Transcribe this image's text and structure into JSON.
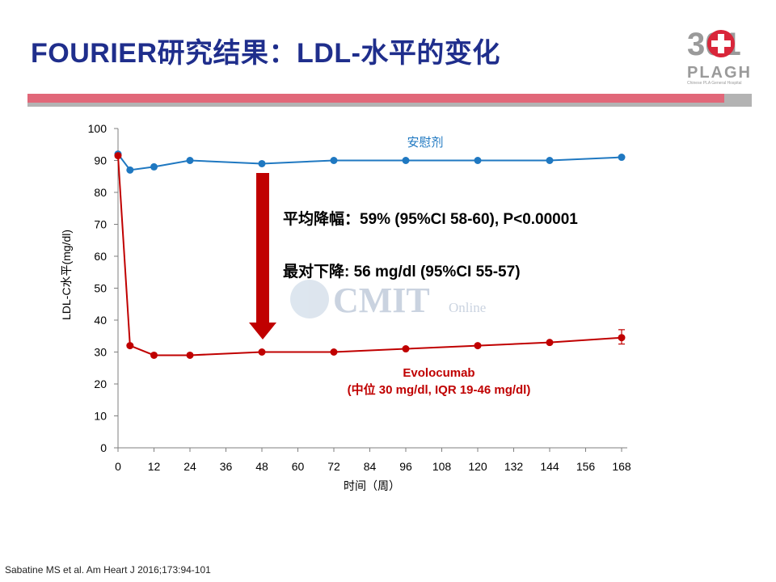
{
  "slide": {
    "title": "FOURIER研究结果：LDL-水平的变化",
    "reference": "Sabatine MS et al. Am Heart  J 2016;173:94-101"
  },
  "logo": {
    "name": "PLAGH",
    "numeral": "301",
    "subtitle": "Chinese PLA General Hospital"
  },
  "watermark": {
    "text": "CMIT",
    "sub": "Online"
  },
  "colors": {
    "title": "#1F2E8C",
    "placebo": "#1F78C1",
    "evolocumab": "#C00000",
    "arrow": "#C00000",
    "accent_bar": "#E16779",
    "grey_bar": "#B3B3B3"
  },
  "annotations": {
    "line1": "平均降幅：59%  (95%CI  58-60), P<0.00001",
    "line2": "最对下降: 56 mg/dl (95%CI  55-57)"
  },
  "chart_data": {
    "type": "line",
    "xlabel": "时间（周）",
    "ylabel": "LDL-C水平(mg/dl)",
    "xlim": [
      0,
      168
    ],
    "ylim": [
      0,
      100
    ],
    "xticks": [
      0,
      12,
      24,
      36,
      48,
      60,
      72,
      84,
      96,
      108,
      120,
      132,
      144,
      156,
      168
    ],
    "yticks": [
      0,
      10,
      20,
      30,
      40,
      50,
      60,
      70,
      80,
      90,
      100
    ],
    "grid": false,
    "series": [
      {
        "name": "安慰剂",
        "color": "#1F78C1",
        "x": [
          0,
          4,
          12,
          24,
          48,
          72,
          96,
          120,
          144,
          168
        ],
        "y": [
          92,
          87,
          88,
          90,
          89,
          90,
          90,
          90,
          90,
          91
        ]
      },
      {
        "name": "Evolocumab",
        "label_line2": "(中位 30 mg/dl, IQR 19-46 mg/dl)",
        "color": "#C00000",
        "x": [
          0,
          4,
          12,
          24,
          48,
          72,
          96,
          120,
          144,
          168
        ],
        "y": [
          91.5,
          32,
          29,
          29,
          30,
          30,
          31,
          32,
          33,
          34.5
        ],
        "error_at_last": [
          32.5,
          37
        ]
      }
    ]
  }
}
